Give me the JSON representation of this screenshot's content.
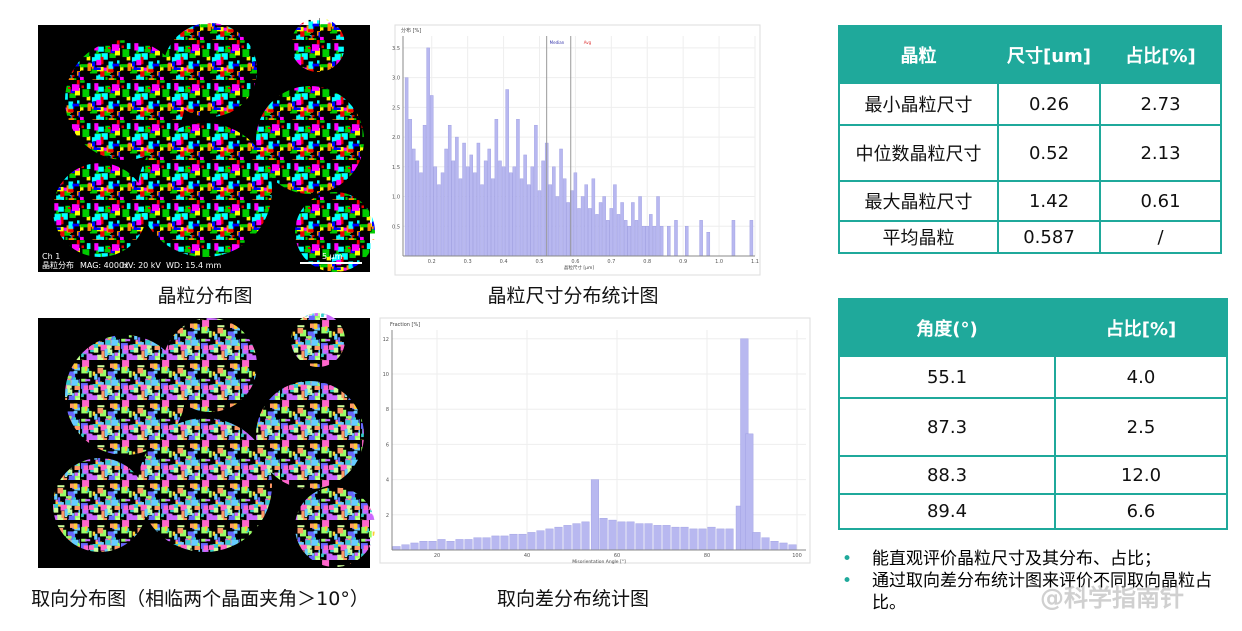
{
  "panels": [
    {
      "caption": "晶粒分布图",
      "info": [
        "Ch 1",
        "晶粒分布",
        "MAG: 4000x",
        "HV: 20 kV",
        "WD: 15.4 mm",
        "5 μm"
      ]
    },
    {
      "caption": "晶粒尺寸分布统计图"
    },
    {
      "caption": "取向分布图（相临两个晶面夹角＞10°）"
    },
    {
      "caption": "取向差分布统计图"
    }
  ],
  "size_histogram": {
    "type": "bar",
    "y_label": "分布 [%]",
    "x_label": "晶粒尺寸 [μm]",
    "color": "#b8b8f0",
    "markers": [
      {
        "label": "Median",
        "value": 0.52
      },
      {
        "label": "Avg",
        "value": 0.587
      }
    ],
    "x": [
      0.13,
      0.14,
      0.15,
      0.16,
      0.17,
      0.18,
      0.19,
      0.2,
      0.21,
      0.22,
      0.23,
      0.24,
      0.25,
      0.26,
      0.27,
      0.28,
      0.29,
      0.3,
      0.31,
      0.32,
      0.33,
      0.34,
      0.35,
      0.36,
      0.37,
      0.38,
      0.39,
      0.4,
      0.41,
      0.42,
      0.43,
      0.44,
      0.45,
      0.46,
      0.47,
      0.48,
      0.49,
      0.5,
      0.51,
      0.52,
      0.53,
      0.54,
      0.55,
      0.56,
      0.57,
      0.58,
      0.59,
      0.6,
      0.61,
      0.62,
      0.63,
      0.64,
      0.65,
      0.66,
      0.67,
      0.68,
      0.69,
      0.7,
      0.71,
      0.72,
      0.73,
      0.74,
      0.75,
      0.76,
      0.77,
      0.78,
      0.79,
      0.8,
      0.81,
      0.82,
      0.83,
      0.84,
      0.86,
      0.88,
      0.91,
      0.95,
      0.97,
      1.04,
      1.09
    ],
    "values": [
      3.0,
      2.3,
      1.8,
      1.6,
      1.4,
      2.2,
      3.5,
      2.7,
      1.5,
      1.2,
      1.4,
      1.8,
      2.2,
      1.6,
      2.0,
      1.3,
      1.9,
      1.5,
      1.7,
      1.4,
      1.9,
      1.2,
      1.6,
      1.8,
      1.3,
      2.3,
      1.6,
      1.5,
      2.8,
      1.4,
      1.5,
      2.3,
      1.3,
      1.7,
      1.2,
      1.5,
      2.2,
      1.1,
      1.6,
      1.9,
      1.2,
      1.5,
      1.0,
      1.8,
      1.3,
      0.9,
      1.1,
      1.4,
      0.8,
      1.0,
      1.2,
      0.8,
      1.3,
      0.7,
      0.9,
      1.0,
      0.6,
      0.8,
      1.2,
      0.7,
      0.9,
      0.6,
      0.5,
      0.9,
      0.6,
      1.0,
      0.5,
      0.5,
      0.7,
      0.5,
      1.0,
      0.5,
      0.5,
      0.6,
      0.5,
      0.6,
      0.4,
      0.6,
      0.6
    ],
    "xlim": [
      0.12,
      1.1
    ],
    "ylim": [
      0,
      3.7
    ],
    "xticks": [
      0.2,
      0.3,
      0.4,
      0.5,
      0.6,
      0.7,
      0.8,
      0.9,
      {
        "value": 1,
        "label": "1.0"
      },
      1.1
    ],
    "yticks": [
      0.5,
      {
        "value": 1,
        "label": "1.0"
      },
      1.5,
      {
        "value": 2,
        "label": "2.0"
      },
      2.5,
      {
        "value": 3,
        "label": "3.0"
      },
      3.5
    ]
  },
  "angle_histogram": {
    "type": "bar",
    "y_label": "Fraction [%]",
    "x_label": "Misorientation Angle [°]",
    "color": "#b8b8f0",
    "x": [
      11,
      13,
      15,
      17,
      19,
      21,
      23,
      25,
      27,
      29,
      31,
      33,
      35,
      37,
      39,
      41,
      43,
      45,
      47,
      49,
      51,
      53,
      55.1,
      57,
      59,
      61,
      63,
      65,
      67,
      69,
      71,
      73,
      75,
      77,
      79,
      81,
      83,
      85,
      87.3,
      88.3,
      89.4,
      91,
      93,
      95,
      97,
      99
    ],
    "values": [
      0.2,
      0.3,
      0.4,
      0.5,
      0.5,
      0.6,
      0.5,
      0.6,
      0.6,
      0.7,
      0.7,
      0.8,
      0.8,
      0.9,
      0.9,
      1.0,
      1.1,
      1.2,
      1.3,
      1.4,
      1.5,
      1.6,
      4.0,
      1.8,
      1.7,
      1.6,
      1.6,
      1.5,
      1.5,
      1.4,
      1.4,
      1.3,
      1.3,
      1.2,
      1.2,
      1.3,
      1.2,
      1.2,
      2.5,
      12.0,
      6.6,
      1.0,
      0.7,
      0.5,
      0.4,
      0.3
    ],
    "xlim": [
      10,
      102
    ],
    "ylim": [
      0,
      12.5
    ],
    "xticks": [
      20,
      40,
      60,
      80,
      100
    ],
    "yticks": [
      2,
      4,
      6,
      8,
      10,
      12
    ]
  },
  "table1": {
    "header": [
      "晶粒",
      "尺寸[um]",
      "占比[%]"
    ],
    "rows": [
      [
        "最小晶粒尺寸",
        "0.26",
        "2.73"
      ],
      [
        "中位数晶粒尺寸",
        "0.52",
        "2.13"
      ],
      [
        "最大晶粒尺寸",
        "1.42",
        "0.61"
      ],
      [
        "平均晶粒",
        "0.587",
        "/"
      ]
    ]
  },
  "table2": {
    "header": [
      "角度(°)",
      "占比[%]"
    ],
    "rows": [
      [
        "55.1",
        "4.0"
      ],
      [
        "87.3",
        "2.5"
      ],
      [
        "88.3",
        "12.0"
      ],
      [
        "89.4",
        "6.6"
      ]
    ]
  },
  "bullets": [
    "能直观评价晶粒尺寸及其分布、占比；",
    "通过取向差分布统计图来评价不同取向晶粒占比。"
  ],
  "watermark": "@科学指南针"
}
